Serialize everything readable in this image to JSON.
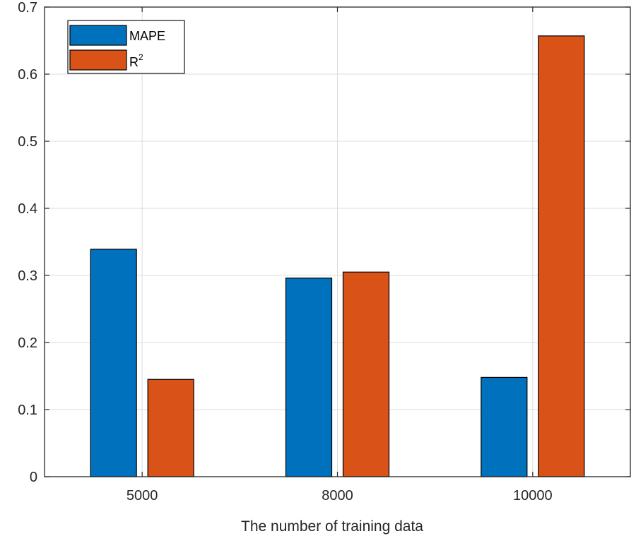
{
  "chart_data": {
    "type": "bar",
    "categories": [
      "5000",
      "8000",
      "10000"
    ],
    "series": [
      {
        "name": "MAPE",
        "color": "#0072BD",
        "values": [
          0.339,
          0.296,
          0.148
        ]
      },
      {
        "name": "R",
        "name_superscript": "2",
        "color": "#D95319",
        "values": [
          0.145,
          0.305,
          0.657
        ]
      }
    ],
    "xlabel": "The number of training data",
    "ylabel": "",
    "ylim": [
      0,
      0.7
    ],
    "yticks": [
      0,
      0.1,
      0.2,
      0.3,
      0.4,
      0.5,
      0.6,
      0.7
    ],
    "ytick_labels": [
      "0",
      "0.1",
      "0.2",
      "0.3",
      "0.4",
      "0.5",
      "0.6",
      "0.7"
    ],
    "grid": true,
    "legend_position": "top-left"
  }
}
